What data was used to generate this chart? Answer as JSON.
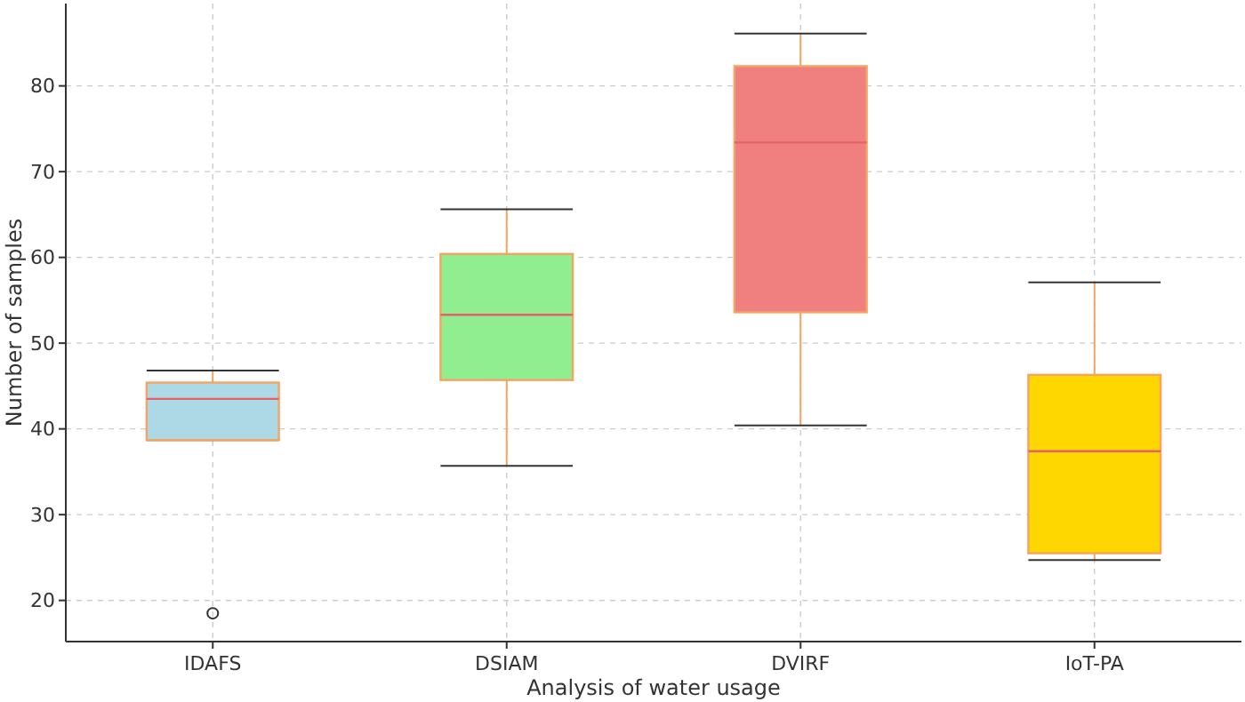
{
  "chart_data": {
    "type": "box",
    "xlabel": "Analysis of water usage",
    "ylabel": "Number of samples",
    "categories": [
      "IDAFS",
      "DSIAM",
      "DVIRF",
      "IoT-PA"
    ],
    "colors": [
      "#add8e6",
      "#90ee90",
      "#f08080",
      "#ffd700"
    ],
    "boxes": [
      {
        "low": 38.7,
        "q1": 38.7,
        "median": 43.5,
        "q3": 45.4,
        "high": 46.8,
        "outliers": [
          18.5
        ]
      },
      {
        "low": 35.7,
        "q1": 45.7,
        "median": 53.3,
        "q3": 60.4,
        "high": 65.6
      },
      {
        "low": 40.4,
        "q1": 53.6,
        "median": 73.4,
        "q3": 82.3,
        "high": 86.1
      },
      {
        "low": 24.7,
        "q1": 25.5,
        "median": 37.4,
        "q3": 46.3,
        "high": 57.1
      }
    ],
    "ylim": [
      15.2,
      89.6
    ],
    "yticks": [
      20,
      30,
      40,
      50,
      60,
      70,
      80
    ],
    "grid": true
  }
}
